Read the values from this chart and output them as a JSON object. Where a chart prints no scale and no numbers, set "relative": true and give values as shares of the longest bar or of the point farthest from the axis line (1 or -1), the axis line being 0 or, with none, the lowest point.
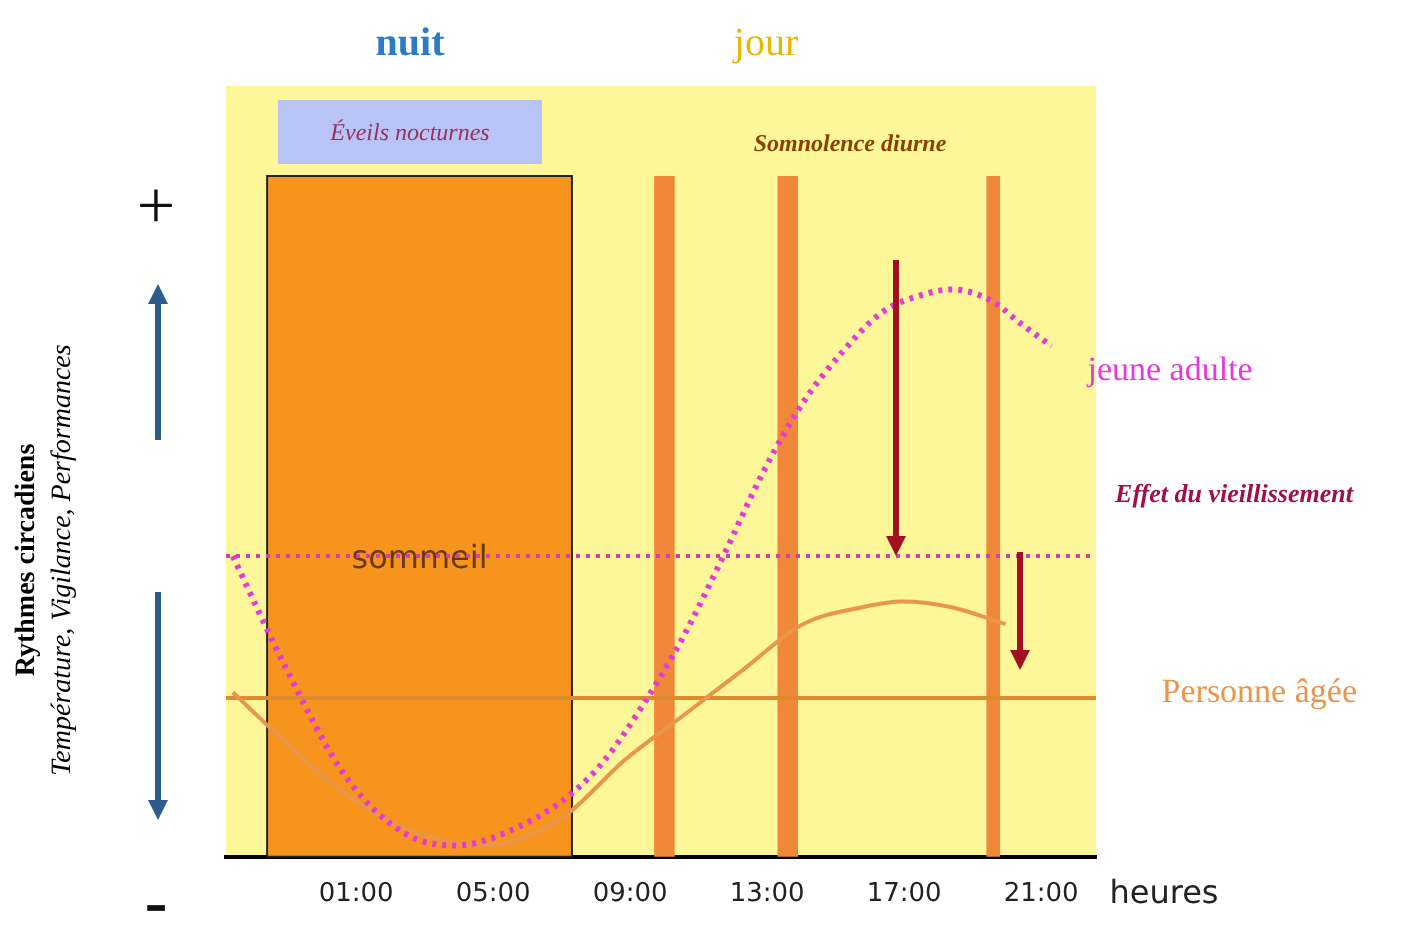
{
  "chart_data": {
    "type": "line",
    "relative": true,
    "xlabel": "heures",
    "annotations": [
      "nuit",
      "jour",
      "Éveils nocturnes",
      "Somnolence diurne",
      "Effet du vieillissement",
      "+",
      "-",
      "Température, Vigilance, Performances",
      "Rythmes circadiens"
    ],
    "xlim": [
      -2.8,
      22.6
    ],
    "xticks": [
      {
        "value": 1,
        "label": "01:00"
      },
      {
        "value": 5,
        "label": "05:00"
      },
      {
        "value": 9,
        "label": "09:00"
      },
      {
        "value": 13,
        "label": "13:00"
      },
      {
        "value": 17,
        "label": "17:00"
      },
      {
        "value": 21,
        "label": "21:00"
      }
    ],
    "grid": false,
    "legend": false,
    "bands": [
      {
        "axis": "x",
        "from": -1.6,
        "to": 7.3,
        "label": "sommeil",
        "color": "#f7941d"
      },
      {
        "axis": "x",
        "from": 9.7,
        "to": 10.3,
        "color": "#f0883a"
      },
      {
        "axis": "x",
        "from": 13.3,
        "to": 13.9,
        "color": "#f0883a"
      },
      {
        "axis": "x",
        "from": 19.4,
        "to": 19.8,
        "color": "#f0883a"
      }
    ],
    "ref_lines": [
      {
        "axis": "y",
        "value": 0.53,
        "color": "#d43fb0",
        "line_style": "dotted"
      },
      {
        "axis": "y",
        "value": 0.28,
        "color": "#e08a30",
        "line_style": "solid"
      }
    ],
    "series": [
      {
        "name": "jeune adulte",
        "color": "#e63ad8",
        "line_style": "dotted",
        "x": [
          -2.6,
          -1.03,
          0.71,
          2.45,
          3.9,
          5.64,
          7.26,
          8.25,
          9.4,
          10.57,
          11.72,
          12.9,
          14.04,
          15.2,
          16.36,
          17.5,
          18.39,
          19.55,
          20.4,
          21.3
        ],
        "values": [
          0.53,
          0.33,
          0.14,
          0.04,
          0.02,
          0.05,
          0.11,
          0.17,
          0.27,
          0.39,
          0.53,
          0.68,
          0.8,
          0.89,
          0.96,
          0.99,
          1,
          0.98,
          0.94,
          0.9
        ]
      },
      {
        "name": "Personne âgée",
        "color": "#e8964a",
        "line_style": "solid",
        "x": [
          -2.6,
          -1.03,
          0.71,
          2.45,
          4.77,
          6.5,
          7.26,
          8.83,
          10.57,
          12.3,
          14.04,
          15.78,
          16.94,
          18.39,
          19.96
        ],
        "values": [
          0.29,
          0.2,
          0.11,
          0.05,
          0.02,
          0.05,
          0.08,
          0.17,
          0.25,
          0.33,
          0.41,
          0.44,
          0.45,
          0.44,
          0.41
        ]
      }
    ]
  }
}
